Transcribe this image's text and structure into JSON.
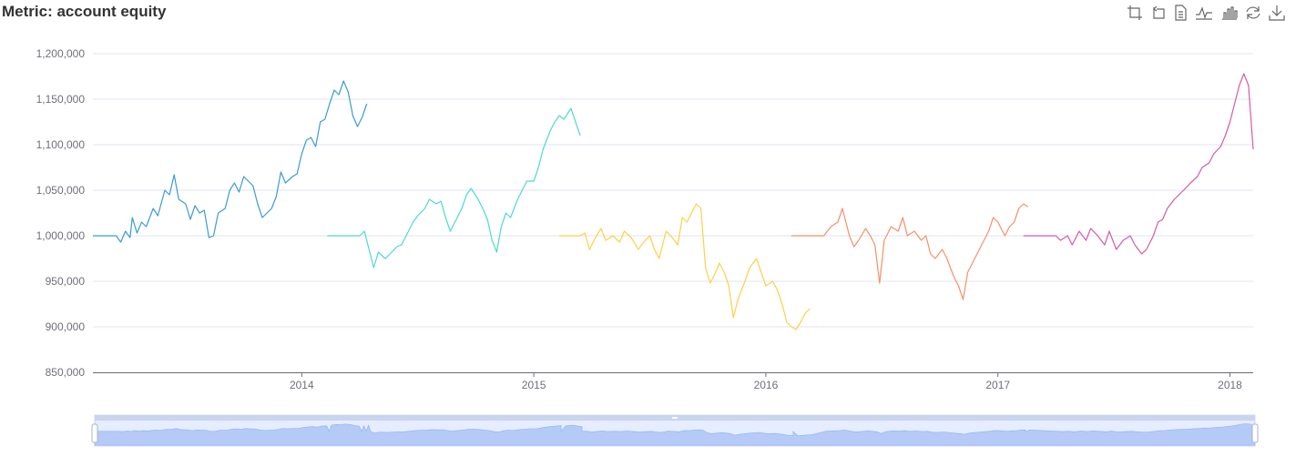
{
  "title": "Metric: account equity",
  "toolbox": {
    "items": [
      {
        "id": "zoom",
        "icon": "zoom-area-icon"
      },
      {
        "id": "zoom-reset",
        "icon": "zoom-reset-icon"
      },
      {
        "id": "data-view",
        "icon": "data-view-icon"
      },
      {
        "id": "line",
        "icon": "line-chart-icon"
      },
      {
        "id": "bar",
        "icon": "bar-chart-icon"
      },
      {
        "id": "restore",
        "icon": "restore-icon"
      },
      {
        "id": "save",
        "icon": "download-icon"
      }
    ]
  },
  "chart_data": {
    "type": "line",
    "title": "Metric: account equity",
    "xlabel": "",
    "ylabel": "",
    "xlim": [
      2013.1,
      2018.1
    ],
    "ylim": [
      850000,
      1200000
    ],
    "x_ticks": [
      2014,
      2015,
      2016,
      2017,
      2018
    ],
    "x_tick_labels": [
      "2014",
      "2015",
      "2016",
      "2017",
      "2018"
    ],
    "y_ticks": [
      850000,
      900000,
      950000,
      1000000,
      1050000,
      1100000,
      1150000,
      1200000
    ],
    "y_tick_labels": [
      "850,000",
      "900,000",
      "950,000",
      "1,000,000",
      "1,050,000",
      "1,100,000",
      "1,150,000",
      "1,200,000"
    ],
    "grid": "horizontal",
    "legend": "none",
    "series": [
      {
        "color": "#3a9bd5",
        "points": [
          [
            2013.1,
            1000000
          ],
          [
            2013.2,
            1000000
          ],
          [
            2013.22,
            993000
          ],
          [
            2013.24,
            1005000
          ],
          [
            2013.26,
            998000
          ],
          [
            2013.27,
            1020000
          ],
          [
            2013.29,
            1003000
          ],
          [
            2013.31,
            1015000
          ],
          [
            2013.33,
            1010000
          ],
          [
            2013.36,
            1030000
          ],
          [
            2013.38,
            1022000
          ],
          [
            2013.41,
            1050000
          ],
          [
            2013.43,
            1045000
          ],
          [
            2013.45,
            1067000
          ],
          [
            2013.47,
            1040000
          ],
          [
            2013.5,
            1035000
          ],
          [
            2013.52,
            1018000
          ],
          [
            2013.54,
            1033000
          ],
          [
            2013.56,
            1025000
          ],
          [
            2013.58,
            1028000
          ],
          [
            2013.6,
            998000
          ],
          [
            2013.62,
            1000000
          ],
          [
            2013.64,
            1025000
          ],
          [
            2013.67,
            1030000
          ],
          [
            2013.69,
            1050000
          ],
          [
            2013.71,
            1058000
          ],
          [
            2013.73,
            1048000
          ],
          [
            2013.75,
            1065000
          ],
          [
            2013.77,
            1060000
          ],
          [
            2013.79,
            1055000
          ],
          [
            2013.81,
            1035000
          ],
          [
            2013.83,
            1020000
          ],
          [
            2013.85,
            1025000
          ],
          [
            2013.87,
            1030000
          ],
          [
            2013.89,
            1043000
          ],
          [
            2013.91,
            1070000
          ],
          [
            2013.93,
            1058000
          ],
          [
            2013.96,
            1065000
          ],
          [
            2013.98,
            1068000
          ],
          [
            2014.0,
            1090000
          ],
          [
            2014.02,
            1105000
          ],
          [
            2014.04,
            1108000
          ],
          [
            2014.06,
            1098000
          ],
          [
            2014.08,
            1125000
          ],
          [
            2014.1,
            1128000
          ],
          [
            2014.12,
            1145000
          ],
          [
            2014.14,
            1160000
          ],
          [
            2014.16,
            1155000
          ],
          [
            2014.18,
            1170000
          ],
          [
            2014.2,
            1158000
          ],
          [
            2014.22,
            1132000
          ],
          [
            2014.24,
            1120000
          ],
          [
            2014.26,
            1130000
          ],
          [
            2014.28,
            1145000
          ]
        ]
      },
      {
        "color": "#4fd8d0",
        "points": [
          [
            2014.11,
            1000000
          ],
          [
            2014.25,
            1000000
          ],
          [
            2014.27,
            1005000
          ],
          [
            2014.29,
            985000
          ],
          [
            2014.31,
            965000
          ],
          [
            2014.33,
            982000
          ],
          [
            2014.36,
            975000
          ],
          [
            2014.38,
            980000
          ],
          [
            2014.41,
            988000
          ],
          [
            2014.43,
            990000
          ],
          [
            2014.46,
            1005000
          ],
          [
            2014.48,
            1015000
          ],
          [
            2014.5,
            1022000
          ],
          [
            2014.53,
            1030000
          ],
          [
            2014.55,
            1040000
          ],
          [
            2014.58,
            1035000
          ],
          [
            2014.6,
            1038000
          ],
          [
            2014.62,
            1020000
          ],
          [
            2014.64,
            1005000
          ],
          [
            2014.66,
            1015000
          ],
          [
            2014.69,
            1030000
          ],
          [
            2014.71,
            1045000
          ],
          [
            2014.73,
            1052000
          ],
          [
            2014.76,
            1040000
          ],
          [
            2014.78,
            1030000
          ],
          [
            2014.8,
            1018000
          ],
          [
            2014.82,
            995000
          ],
          [
            2014.84,
            982000
          ],
          [
            2014.86,
            1010000
          ],
          [
            2014.88,
            1025000
          ],
          [
            2014.9,
            1020000
          ],
          [
            2014.93,
            1040000
          ],
          [
            2014.95,
            1050000
          ],
          [
            2014.97,
            1060000
          ],
          [
            2015.0,
            1060000
          ],
          [
            2015.02,
            1075000
          ],
          [
            2015.04,
            1095000
          ],
          [
            2015.07,
            1115000
          ],
          [
            2015.09,
            1125000
          ],
          [
            2015.11,
            1132000
          ],
          [
            2015.13,
            1128000
          ],
          [
            2015.16,
            1140000
          ],
          [
            2015.18,
            1125000
          ],
          [
            2015.2,
            1110000
          ]
        ]
      },
      {
        "color": "#ffcf48",
        "points": [
          [
            2015.11,
            1000000
          ],
          [
            2015.2,
            1000000
          ],
          [
            2015.22,
            1003000
          ],
          [
            2015.24,
            985000
          ],
          [
            2015.27,
            1000000
          ],
          [
            2015.29,
            1008000
          ],
          [
            2015.31,
            995000
          ],
          [
            2015.34,
            1000000
          ],
          [
            2015.37,
            993000
          ],
          [
            2015.39,
            1005000
          ],
          [
            2015.42,
            998000
          ],
          [
            2015.45,
            985000
          ],
          [
            2015.47,
            992000
          ],
          [
            2015.5,
            1000000
          ],
          [
            2015.52,
            985000
          ],
          [
            2015.54,
            975000
          ],
          [
            2015.57,
            1005000
          ],
          [
            2015.59,
            1000000
          ],
          [
            2015.62,
            990000
          ],
          [
            2015.64,
            1020000
          ],
          [
            2015.66,
            1015000
          ],
          [
            2015.68,
            1025000
          ],
          [
            2015.7,
            1035000
          ],
          [
            2015.72,
            1030000
          ],
          [
            2015.74,
            965000
          ],
          [
            2015.76,
            948000
          ],
          [
            2015.78,
            958000
          ],
          [
            2015.8,
            970000
          ],
          [
            2015.82,
            960000
          ],
          [
            2015.84,
            945000
          ],
          [
            2015.86,
            910000
          ],
          [
            2015.88,
            930000
          ],
          [
            2015.91,
            950000
          ],
          [
            2015.93,
            965000
          ],
          [
            2015.96,
            975000
          ],
          [
            2015.98,
            960000
          ],
          [
            2016.0,
            945000
          ],
          [
            2016.03,
            950000
          ],
          [
            2016.05,
            940000
          ],
          [
            2016.07,
            925000
          ],
          [
            2016.09,
            905000
          ],
          [
            2016.11,
            900000
          ],
          [
            2016.13,
            897000
          ],
          [
            2016.15,
            905000
          ],
          [
            2016.17,
            915000
          ],
          [
            2016.19,
            920000
          ]
        ]
      },
      {
        "color": "#f6906a",
        "points": [
          [
            2016.11,
            1000000
          ],
          [
            2016.25,
            1000000
          ],
          [
            2016.28,
            1010000
          ],
          [
            2016.31,
            1015000
          ],
          [
            2016.33,
            1030000
          ],
          [
            2016.36,
            1000000
          ],
          [
            2016.38,
            988000
          ],
          [
            2016.4,
            995000
          ],
          [
            2016.43,
            1008000
          ],
          [
            2016.45,
            1000000
          ],
          [
            2016.47,
            990000
          ],
          [
            2016.49,
            948000
          ],
          [
            2016.51,
            995000
          ],
          [
            2016.54,
            1010000
          ],
          [
            2016.57,
            1005000
          ],
          [
            2016.59,
            1020000
          ],
          [
            2016.61,
            1000000
          ],
          [
            2016.64,
            1005000
          ],
          [
            2016.67,
            995000
          ],
          [
            2016.69,
            1000000
          ],
          [
            2016.71,
            980000
          ],
          [
            2016.73,
            975000
          ],
          [
            2016.76,
            985000
          ],
          [
            2016.78,
            975000
          ],
          [
            2016.81,
            955000
          ],
          [
            2016.83,
            945000
          ],
          [
            2016.85,
            930000
          ],
          [
            2016.87,
            960000
          ],
          [
            2016.89,
            970000
          ],
          [
            2016.91,
            980000
          ],
          [
            2016.93,
            990000
          ],
          [
            2016.96,
            1005000
          ],
          [
            2016.98,
            1020000
          ],
          [
            2017.0,
            1015000
          ],
          [
            2017.03,
            1000000
          ],
          [
            2017.05,
            1010000
          ],
          [
            2017.07,
            1015000
          ],
          [
            2017.09,
            1030000
          ],
          [
            2017.11,
            1035000
          ],
          [
            2017.13,
            1032000
          ]
        ]
      },
      {
        "color": "#d45aa9",
        "points": [
          [
            2017.11,
            1000000
          ],
          [
            2017.25,
            1000000
          ],
          [
            2017.27,
            995000
          ],
          [
            2017.3,
            1000000
          ],
          [
            2017.32,
            990000
          ],
          [
            2017.35,
            1005000
          ],
          [
            2017.38,
            995000
          ],
          [
            2017.4,
            1008000
          ],
          [
            2017.43,
            1000000
          ],
          [
            2017.46,
            990000
          ],
          [
            2017.48,
            1005000
          ],
          [
            2017.51,
            985000
          ],
          [
            2017.54,
            995000
          ],
          [
            2017.57,
            1000000
          ],
          [
            2017.59,
            990000
          ],
          [
            2017.62,
            980000
          ],
          [
            2017.64,
            985000
          ],
          [
            2017.67,
            1000000
          ],
          [
            2017.69,
            1015000
          ],
          [
            2017.71,
            1018000
          ],
          [
            2017.73,
            1030000
          ],
          [
            2017.76,
            1040000
          ],
          [
            2017.78,
            1045000
          ],
          [
            2017.8,
            1050000
          ],
          [
            2017.83,
            1058000
          ],
          [
            2017.86,
            1065000
          ],
          [
            2017.88,
            1075000
          ],
          [
            2017.91,
            1080000
          ],
          [
            2017.93,
            1090000
          ],
          [
            2017.96,
            1098000
          ],
          [
            2017.98,
            1110000
          ],
          [
            2018.0,
            1125000
          ],
          [
            2018.02,
            1145000
          ],
          [
            2018.04,
            1165000
          ],
          [
            2018.06,
            1178000
          ],
          [
            2018.08,
            1165000
          ],
          [
            2018.1,
            1095000
          ]
        ]
      }
    ],
    "data_zoom": {
      "start_percent": 0,
      "end_percent": 100
    }
  }
}
